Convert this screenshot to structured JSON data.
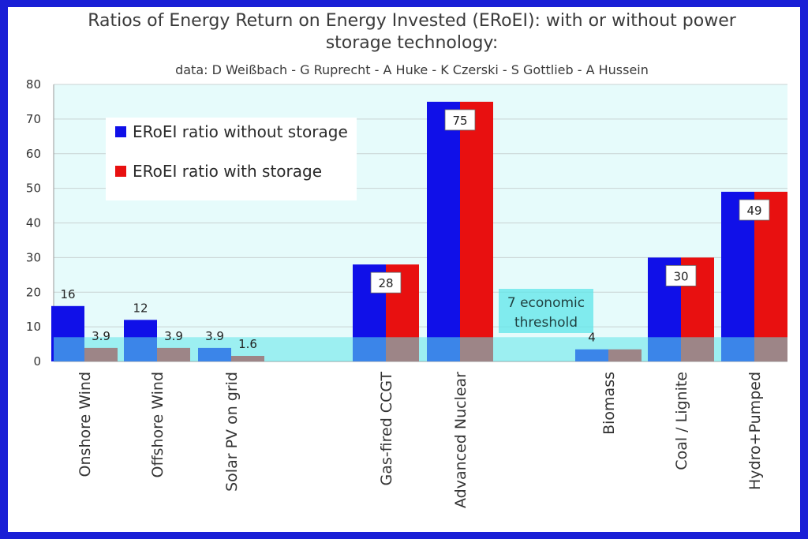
{
  "chart_data": {
    "type": "bar",
    "title_lines": [
      "Ratios of Energy Return on Energy Invested (ERoEI): with or without power",
      "storage technology:"
    ],
    "subtitle": "data: D Weißbach - G Ruprecht - A Huke - K Czerski - S Gottlieb - A Hussein",
    "ylim": [
      0,
      80
    ],
    "yticks": [
      0,
      10,
      20,
      30,
      40,
      50,
      60,
      70,
      80
    ],
    "grid": true,
    "legend_position": "top-left",
    "categories": [
      "Onshore Wind",
      "Offshore Wind",
      "Solar PV on grid",
      "",
      "Gas-fired CCGT",
      "Advanced Nuclear",
      "",
      "Biomass",
      "Coal / Lignite",
      "Hydro+Pumped"
    ],
    "series": [
      {
        "name": "ERoEI ratio without storage",
        "color": "#1010e8",
        "values": [
          16,
          12,
          3.9,
          null,
          28,
          75,
          null,
          3.5,
          30,
          49
        ]
      },
      {
        "name": "ERoEI ratio with storage",
        "color": "#e81010",
        "values": [
          3.9,
          3.9,
          1.6,
          null,
          28,
          75,
          null,
          3.5,
          30,
          49
        ]
      }
    ],
    "data_labels": [
      {
        "category_index": 0,
        "series_index": 0,
        "text": "16"
      },
      {
        "category_index": 0,
        "series_index": 1,
        "text": "3.9"
      },
      {
        "category_index": 1,
        "series_index": 0,
        "text": "12"
      },
      {
        "category_index": 1,
        "series_index": 1,
        "text": "3.9"
      },
      {
        "category_index": 2,
        "series_index": 0,
        "text": "3.9"
      },
      {
        "category_index": 2,
        "series_index": 1,
        "text": "1.6"
      },
      {
        "category_index": 4,
        "series_index": 0,
        "text": "28",
        "boxed": true
      },
      {
        "category_index": 5,
        "series_index": 0,
        "text": "75",
        "boxed": true
      },
      {
        "category_index": 7,
        "series_index": 0,
        "text": "4"
      },
      {
        "category_index": 8,
        "series_index": 0,
        "text": "30",
        "boxed": true
      },
      {
        "category_index": 9,
        "series_index": 0,
        "text": "49",
        "boxed": true
      }
    ],
    "threshold": {
      "value": 7,
      "label_lines": [
        "7 economic",
        "threshold"
      ],
      "color": "#5ee6ea"
    },
    "plot_background": "#e6fbfb"
  }
}
